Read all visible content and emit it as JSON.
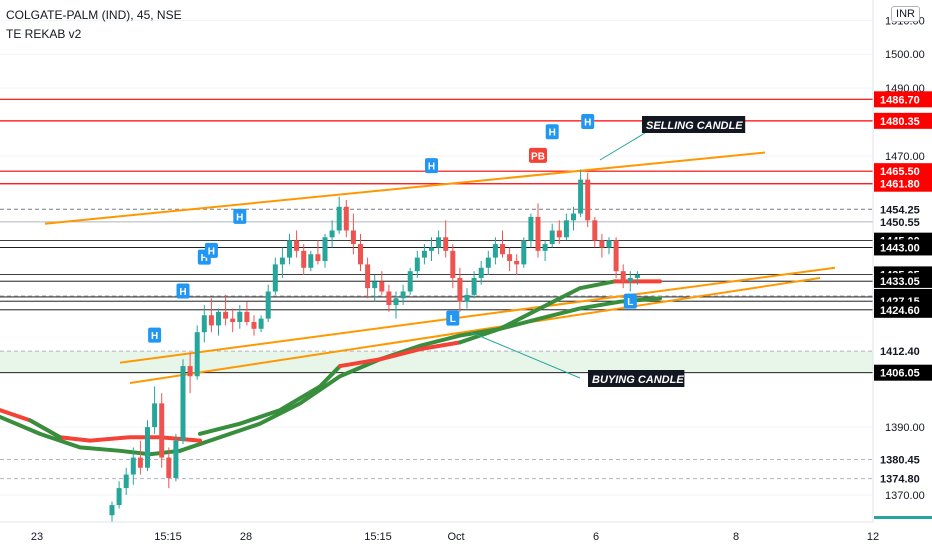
{
  "header": {
    "symbol": "COLGATE-PALM (IND), 45, NSE",
    "indicator": "TE REKAB v2",
    "currency": "INR"
  },
  "colors": {
    "up": "#26a69a",
    "down": "#ef5350",
    "red_line": "#ff0000",
    "black_line": "#000000",
    "trendline": "#ff9800",
    "ma_green": "#388e3c",
    "ma_red": "#f44336",
    "zone_fill": "#e8f5e9",
    "marker_blue": "#2196f3",
    "marker_red": "#f44336"
  },
  "chart_data": {
    "type": "candlestick",
    "symbol": "COLGATE-PALM (IND)",
    "interval": "45",
    "exchange": "NSE",
    "ylim": [
      1362,
      1516
    ],
    "x_tick_labels": [
      "23",
      "15:15",
      "28",
      "15:15",
      "Oct",
      "6",
      "8",
      "12"
    ],
    "y_tick_labels": [
      "1510.00",
      "1500.00",
      "1490.00",
      "1470.00",
      "1390.00",
      "1370.00"
    ],
    "price_levels": [
      {
        "value": 1486.7,
        "label": "1486.70",
        "style": "red"
      },
      {
        "value": 1480.35,
        "label": "1480.35",
        "style": "red"
      },
      {
        "value": 1465.5,
        "label": "1465.50",
        "style": "red"
      },
      {
        "value": 1461.8,
        "label": "1461.80",
        "style": "red"
      },
      {
        "value": 1454.25,
        "label": "1454.25",
        "style": "dashed"
      },
      {
        "value": 1450.55,
        "label": "1450.55",
        "style": "solid-gray"
      },
      {
        "value": 1445.0,
        "label": "1445.00",
        "style": "black"
      },
      {
        "value": 1443.0,
        "label": "1443.00",
        "style": "black"
      },
      {
        "value": 1435.05,
        "label": "1435.05",
        "style": "black"
      },
      {
        "value": 1433.05,
        "label": "1433.05",
        "style": "black"
      },
      {
        "value": 1428.7,
        "label": "1428.70",
        "style": "gray"
      },
      {
        "value": 1428.4,
        "label": "1428.40",
        "style": "black"
      },
      {
        "value": 1427.15,
        "label": "1427.15",
        "style": "black"
      },
      {
        "value": 1424.6,
        "label": "1424.60",
        "style": "black"
      },
      {
        "value": 1412.4,
        "label": "1412.40",
        "style": "gray"
      },
      {
        "value": 1406.05,
        "label": "1406.05",
        "style": "black"
      },
      {
        "value": 1380.45,
        "label": "1380.45",
        "style": "gray"
      },
      {
        "value": 1374.8,
        "label": "1374.80",
        "style": "gray"
      }
    ],
    "annotations": [
      {
        "text": "SELLING CANDLE"
      },
      {
        "text": "BUYING CANDLE"
      }
    ],
    "markers": [
      "H",
      "H",
      "H",
      "H",
      "H",
      "H",
      "H",
      "H",
      "PB",
      "L",
      "L"
    ],
    "candles_ohlc": [
      [
        1364,
        1368,
        1362,
        1367
      ],
      [
        1367,
        1374,
        1366,
        1372
      ],
      [
        1372,
        1378,
        1370,
        1376
      ],
      [
        1376,
        1384,
        1373,
        1381
      ],
      [
        1381,
        1386,
        1376,
        1378
      ],
      [
        1378,
        1392,
        1377,
        1390
      ],
      [
        1390,
        1402,
        1388,
        1397
      ],
      [
        1397,
        1400,
        1378,
        1381
      ],
      [
        1381,
        1384,
        1372,
        1375
      ],
      [
        1375,
        1388,
        1374,
        1386
      ],
      [
        1386,
        1410,
        1385,
        1408
      ],
      [
        1408,
        1412,
        1400,
        1405
      ],
      [
        1405,
        1420,
        1404,
        1418
      ],
      [
        1418,
        1426,
        1415,
        1423
      ],
      [
        1423,
        1428,
        1418,
        1420
      ],
      [
        1420,
        1425,
        1417,
        1424
      ],
      [
        1424,
        1429,
        1420,
        1422
      ],
      [
        1422,
        1425,
        1418,
        1421
      ],
      [
        1421,
        1426,
        1419,
        1424
      ],
      [
        1424,
        1427,
        1420,
        1421
      ],
      [
        1421,
        1423,
        1417,
        1419
      ],
      [
        1419,
        1423,
        1418,
        1422
      ],
      [
        1422,
        1432,
        1421,
        1430
      ],
      [
        1430,
        1440,
        1429,
        1438
      ],
      [
        1438,
        1443,
        1434,
        1440
      ],
      [
        1440,
        1447,
        1438,
        1445
      ],
      [
        1445,
        1448,
        1440,
        1442
      ],
      [
        1442,
        1444,
        1435,
        1437
      ],
      [
        1437,
        1442,
        1436,
        1441
      ],
      [
        1441,
        1445,
        1438,
        1439
      ],
      [
        1439,
        1447,
        1437,
        1446
      ],
      [
        1446,
        1451,
        1443,
        1448
      ],
      [
        1448,
        1458,
        1447,
        1455
      ],
      [
        1455,
        1457,
        1446,
        1448
      ],
      [
        1448,
        1453,
        1441,
        1444
      ],
      [
        1444,
        1447,
        1436,
        1438
      ],
      [
        1438,
        1440,
        1428,
        1431
      ],
      [
        1431,
        1435,
        1427,
        1433
      ],
      [
        1433,
        1436,
        1429,
        1430
      ],
      [
        1430,
        1432,
        1424,
        1426
      ],
      [
        1426,
        1430,
        1422,
        1428
      ],
      [
        1428,
        1432,
        1426,
        1430
      ],
      [
        1430,
        1437,
        1429,
        1436
      ],
      [
        1436,
        1442,
        1434,
        1440
      ],
      [
        1440,
        1444,
        1438,
        1442
      ],
      [
        1442,
        1446,
        1439,
        1443
      ],
      [
        1443,
        1448,
        1441,
        1446
      ],
      [
        1446,
        1451,
        1440,
        1442
      ],
      [
        1442,
        1444,
        1431,
        1434
      ],
      [
        1434,
        1437,
        1424,
        1427
      ],
      [
        1427,
        1431,
        1425,
        1429
      ],
      [
        1429,
        1436,
        1428,
        1434
      ],
      [
        1434,
        1439,
        1432,
        1437
      ],
      [
        1437,
        1442,
        1435,
        1440
      ],
      [
        1440,
        1446,
        1438,
        1444
      ],
      [
        1444,
        1448,
        1440,
        1441
      ],
      [
        1441,
        1443,
        1436,
        1439
      ],
      [
        1439,
        1441,
        1435,
        1438
      ],
      [
        1438,
        1446,
        1437,
        1445
      ],
      [
        1445,
        1453,
        1443,
        1452
      ],
      [
        1452,
        1456,
        1440,
        1442
      ],
      [
        1442,
        1445,
        1439,
        1444
      ],
      [
        1444,
        1450,
        1443,
        1448
      ],
      [
        1448,
        1451,
        1444,
        1446
      ],
      [
        1446,
        1453,
        1445,
        1451
      ],
      [
        1451,
        1455,
        1448,
        1453
      ],
      [
        1453,
        1466,
        1452,
        1463
      ],
      [
        1463,
        1465,
        1449,
        1451
      ],
      [
        1451,
        1452,
        1443,
        1445
      ],
      [
        1445,
        1447,
        1440,
        1443
      ],
      [
        1443,
        1446,
        1441,
        1445
      ],
      [
        1445,
        1446,
        1434,
        1436
      ],
      [
        1436,
        1438,
        1431,
        1433
      ],
      [
        1433,
        1436,
        1430,
        1434
      ],
      [
        1434,
        1436,
        1432,
        1435
      ]
    ]
  }
}
